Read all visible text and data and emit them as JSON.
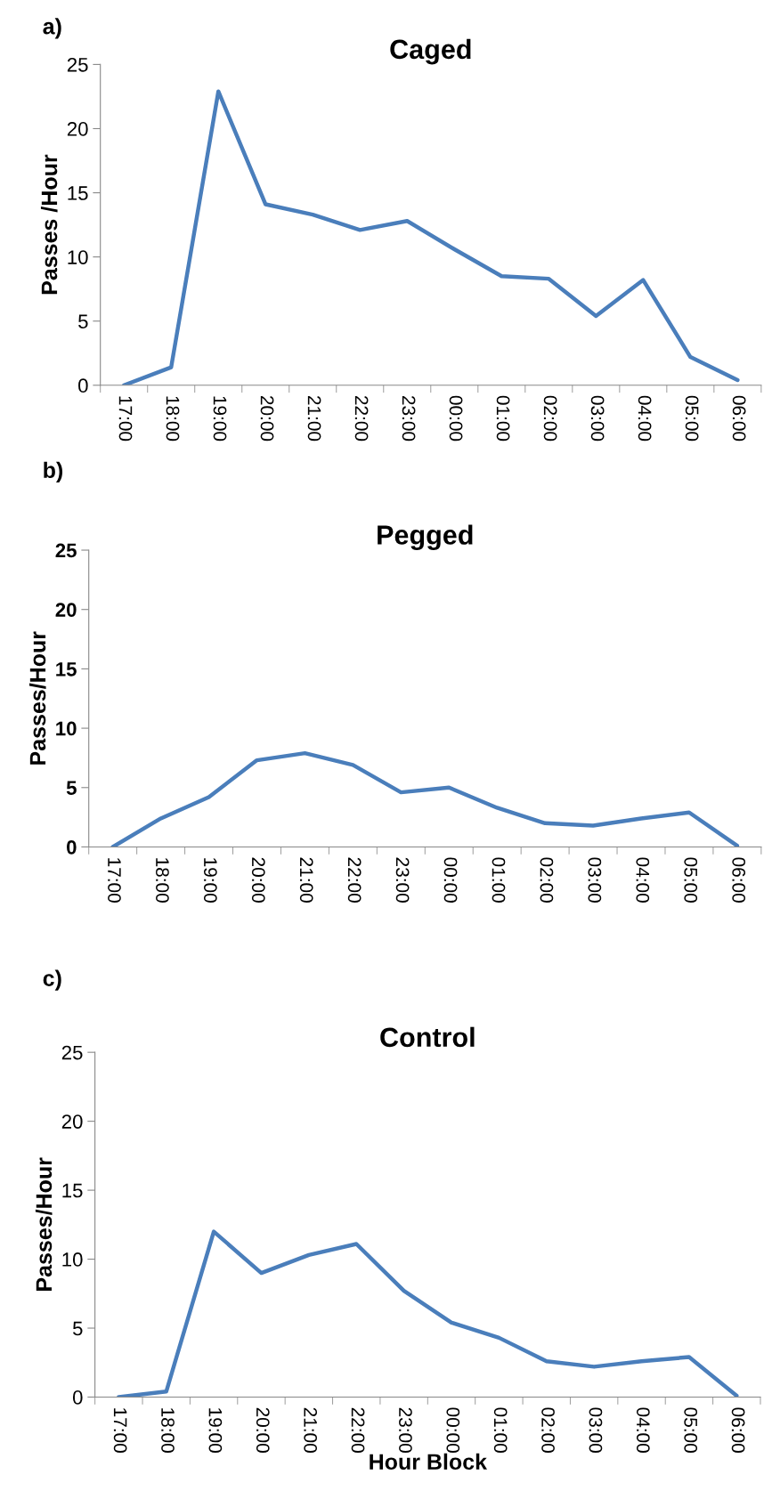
{
  "chart_data": [
    {
      "type": "line",
      "title": "Caged",
      "ylabel": "Passes /Hour",
      "annotations": [
        "a)"
      ],
      "categories": [
        "17:00",
        "18:00",
        "19:00",
        "20:00",
        "21:00",
        "22:00",
        "23:00",
        "00:00",
        "01:00",
        "02:00",
        "03:00",
        "04:00",
        "05:00",
        "06:00"
      ],
      "series": [
        {
          "color": "#4a7ebb",
          "values": [
            0,
            1.4,
            22.9,
            14.1,
            13.3,
            12.1,
            12.8,
            10.6,
            8.5,
            8.3,
            5.4,
            8.2,
            2.2,
            0.4
          ]
        }
      ],
      "ylim": [
        0,
        25
      ],
      "yticks": [
        0,
        5,
        10,
        15,
        20,
        25
      ],
      "grid": false,
      "marker": "none",
      "line_style": "solid"
    },
    {
      "type": "line",
      "title": "Pegged",
      "ylabel": "Passes/Hour",
      "annotations": [
        "b)"
      ],
      "categories": [
        "17:00",
        "18:00",
        "19:00",
        "20:00",
        "21:00",
        "22:00",
        "23:00",
        "00:00",
        "01:00",
        "02:00",
        "03:00",
        "04:00",
        "05:00",
        "06:00"
      ],
      "series": [
        {
          "color": "#4a7ebb",
          "values": [
            0,
            2.4,
            4.2,
            7.3,
            7.9,
            6.9,
            4.6,
            5.0,
            3.3,
            2.0,
            1.8,
            2.4,
            2.9,
            0.1
          ]
        }
      ],
      "ylim": [
        0,
        25
      ],
      "yticks": [
        0,
        5,
        10,
        15,
        20,
        25
      ],
      "grid": false,
      "marker": "none",
      "line_style": "solid"
    },
    {
      "type": "line",
      "title": "Control",
      "ylabel": "Passes/Hour",
      "xlabel": "Hour Block",
      "annotations": [
        "c)"
      ],
      "categories": [
        "17:00",
        "18:00",
        "19:00",
        "20:00",
        "21:00",
        "22:00",
        "23:00",
        "00:00",
        "01:00",
        "02:00",
        "03:00",
        "04:00",
        "05:00",
        "06:00"
      ],
      "series": [
        {
          "color": "#4a7ebb",
          "values": [
            0,
            0.4,
            12.0,
            9.0,
            10.3,
            11.1,
            7.7,
            5.4,
            4.3,
            2.6,
            2.2,
            2.6,
            2.9,
            0.1
          ]
        }
      ],
      "ylim": [
        0,
        25
      ],
      "yticks": [
        0,
        5,
        10,
        15,
        20,
        25
      ],
      "grid": false,
      "marker": "none",
      "line_style": "solid"
    }
  ]
}
